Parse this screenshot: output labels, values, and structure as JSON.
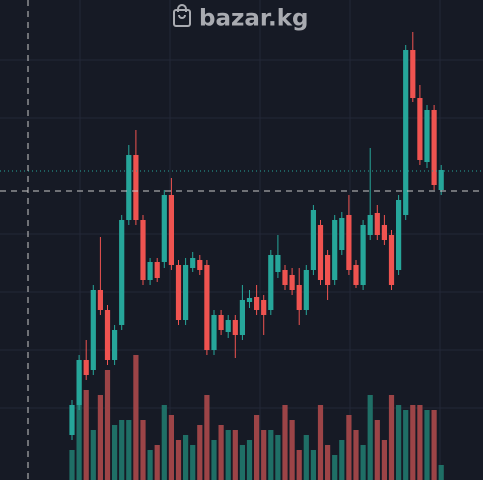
{
  "header": {
    "title": "bazar.kg"
  },
  "chart_data": {
    "type": "candlestick",
    "up_color": "#26a69a",
    "down_color": "#ef5350",
    "volume_up_color": "#1f6f66",
    "volume_down_color": "#9c4447",
    "ylim": [
      0,
      480
    ],
    "y2lim": [
      0,
      480
    ],
    "open": [
      45,
      75,
      120,
      110,
      190,
      170,
      120,
      155,
      260,
      325,
      260,
      200,
      218,
      218,
      285,
      215,
      160,
      212,
      220,
      215,
      130,
      165,
      148,
      160,
      145,
      178,
      183,
      180,
      170,
      208,
      210,
      205,
      195,
      170,
      210,
      255,
      225,
      200,
      230,
      265,
      215,
      195,
      245,
      267,
      255,
      245,
      210,
      265,
      430,
      382,
      318,
      370,
      290
    ],
    "high": [
      80,
      125,
      140,
      195,
      243,
      175,
      155,
      265,
      335,
      350,
      265,
      222,
      222,
      290,
      302,
      220,
      222,
      228,
      225,
      220,
      170,
      170,
      165,
      165,
      195,
      190,
      195,
      185,
      230,
      245,
      215,
      212,
      212,
      215,
      275,
      260,
      230,
      265,
      268,
      285,
      220,
      260,
      332,
      275,
      265,
      250,
      285,
      435,
      448,
      395,
      375,
      375,
      315
    ],
    "low": [
      40,
      70,
      100,
      105,
      165,
      115,
      115,
      150,
      255,
      255,
      195,
      195,
      198,
      212,
      210,
      155,
      155,
      208,
      205,
      125,
      125,
      145,
      142,
      122,
      140,
      172,
      165,
      145,
      165,
      202,
      190,
      185,
      155,
      165,
      205,
      195,
      180,
      195,
      225,
      205,
      192,
      190,
      240,
      240,
      235,
      190,
      205,
      260,
      378,
      315,
      312,
      290,
      285
    ],
    "close": [
      75,
      120,
      105,
      190,
      170,
      120,
      150,
      260,
      325,
      260,
      200,
      218,
      202,
      285,
      215,
      160,
      215,
      222,
      210,
      130,
      165,
      150,
      160,
      145,
      180,
      182,
      170,
      165,
      225,
      225,
      195,
      190,
      170,
      210,
      270,
      200,
      195,
      260,
      262,
      210,
      195,
      255,
      265,
      245,
      240,
      195,
      280,
      430,
      382,
      320,
      370,
      295,
      310
    ],
    "volume": [
      30,
      110,
      90,
      50,
      85,
      110,
      55,
      60,
      60,
      125,
      60,
      30,
      35,
      75,
      65,
      40,
      45,
      35,
      55,
      85,
      40,
      55,
      50,
      50,
      35,
      40,
      65,
      50,
      50,
      45,
      75,
      60,
      30,
      45,
      30,
      75,
      35,
      25,
      40,
      65,
      50,
      35,
      85,
      60,
      40,
      85,
      75,
      70,
      75,
      75,
      70,
      70,
      15
    ]
  }
}
